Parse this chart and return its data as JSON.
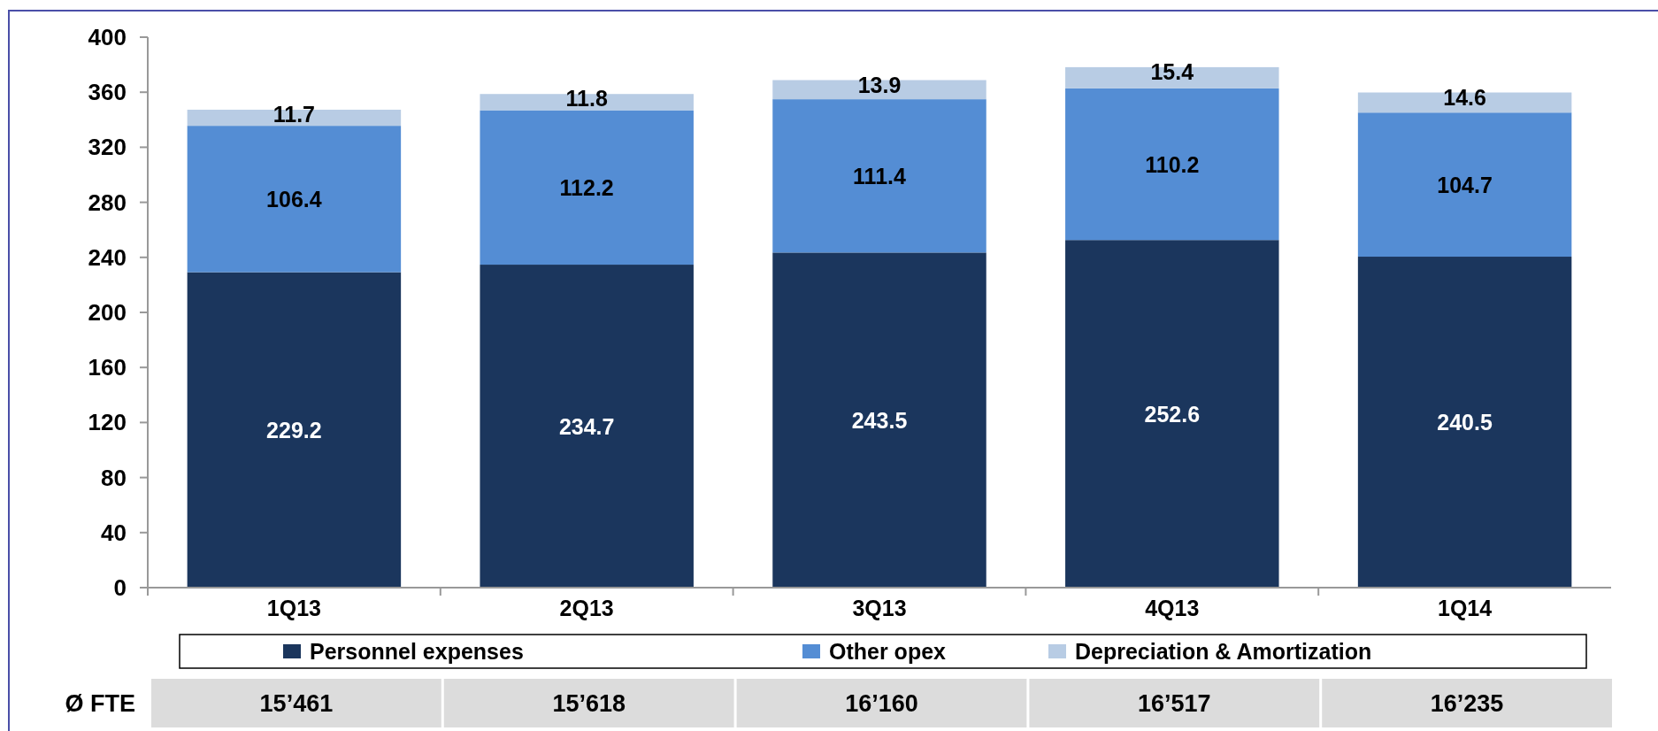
{
  "chart_data": {
    "type": "bar",
    "stacked": true,
    "categories": [
      "1Q13",
      "2Q13",
      "3Q13",
      "4Q13",
      "1Q14"
    ],
    "series": [
      {
        "name": "Personnel expenses",
        "color": "#1b365d",
        "values": [
          229.2,
          234.7,
          243.5,
          252.6,
          240.5
        ]
      },
      {
        "name": "Other opex",
        "color": "#548dd4",
        "values": [
          106.4,
          112.2,
          111.4,
          110.2,
          104.7
        ]
      },
      {
        "name": "Depreciation & Amortization",
        "color": "#b8cce4",
        "values": [
          11.7,
          11.8,
          13.9,
          15.4,
          14.6
        ]
      }
    ],
    "ylim": [
      0,
      400
    ],
    "yticks": [
      0,
      40,
      80,
      120,
      160,
      200,
      240,
      280,
      320,
      360,
      400
    ],
    "grid": false,
    "legend": "bottom",
    "data_labels": true,
    "annotations": [
      "Ø FTE",
      "15’461",
      "15’618",
      "16’160",
      "16’517",
      "16’235"
    ]
  }
}
